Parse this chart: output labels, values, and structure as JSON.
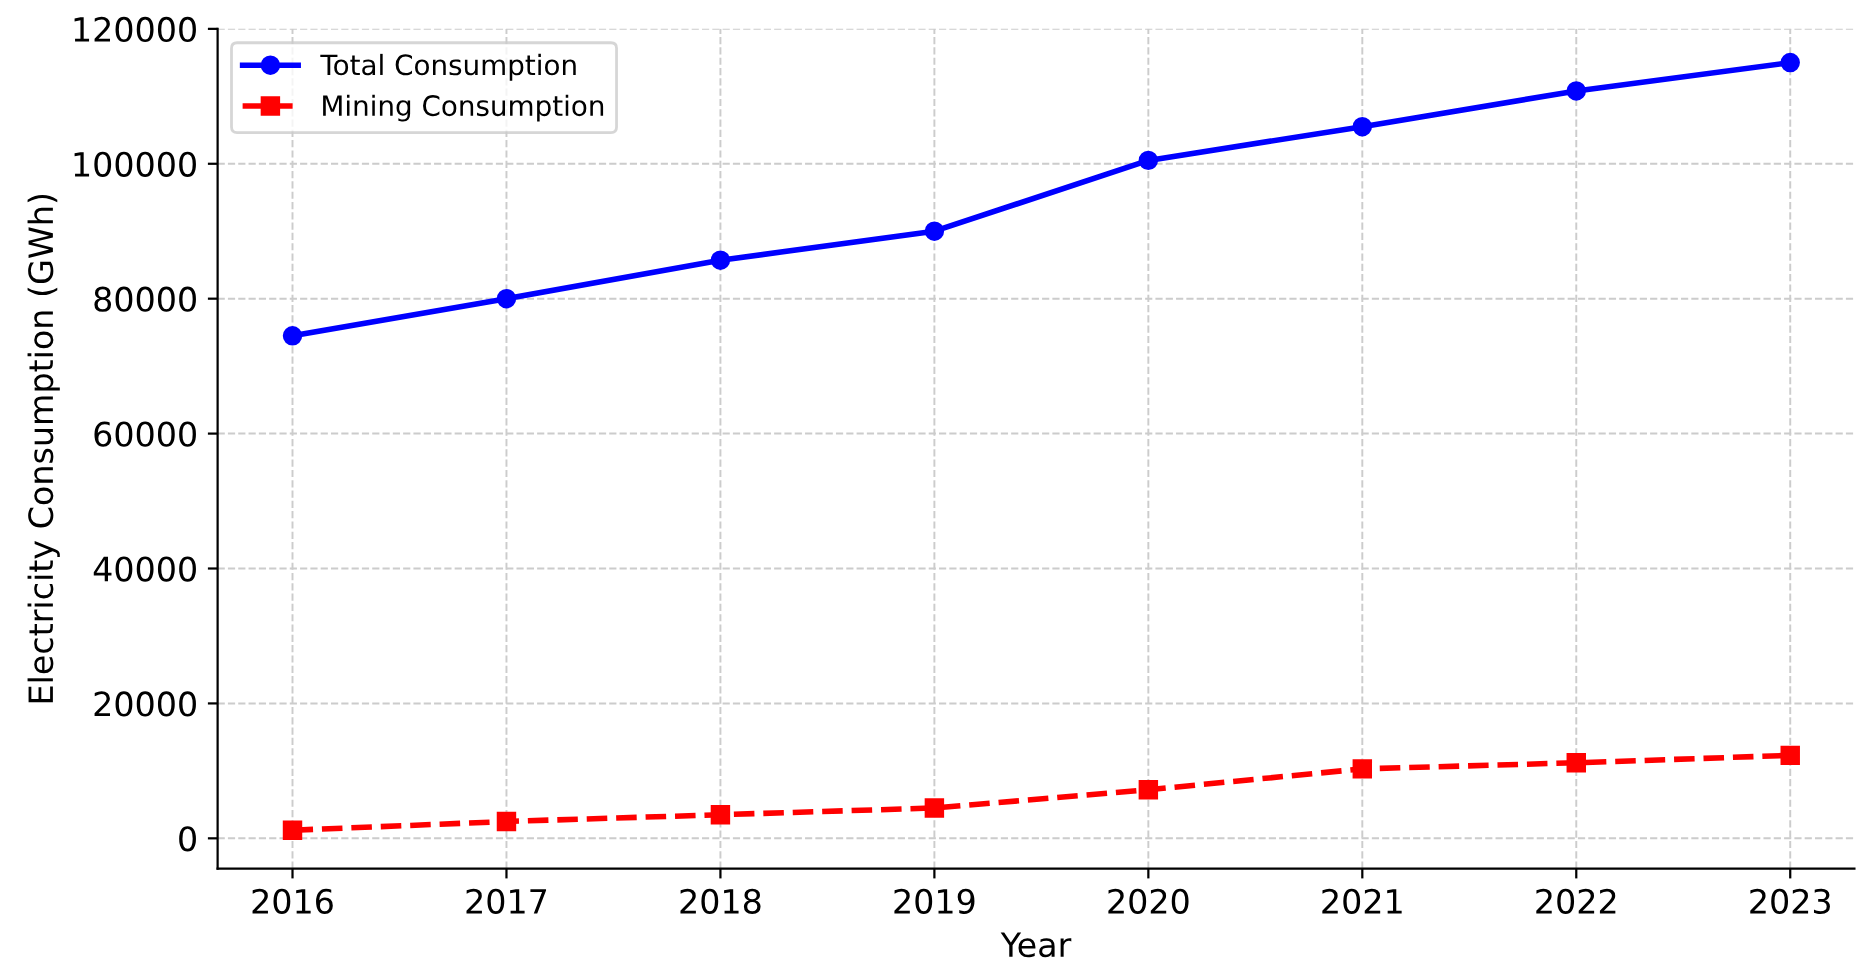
{
  "chart_data": {
    "type": "line",
    "xlabel": "Year",
    "ylabel": "Electricity Consumption (GWh)",
    "x": [
      2016,
      2017,
      2018,
      2019,
      2020,
      2021,
      2022,
      2023
    ],
    "series": [
      {
        "name": "Total Consumption",
        "color": "#0000ff",
        "marker": "circle",
        "line_style": "solid",
        "values": [
          74500,
          80000,
          85700,
          90000,
          100500,
          105500,
          110800,
          115000
        ]
      },
      {
        "name": "Mining Consumption",
        "color": "#ff0000",
        "marker": "square",
        "line_style": "dashed",
        "values": [
          1200,
          2500,
          3500,
          4500,
          7200,
          10300,
          11200,
          12300
        ]
      }
    ],
    "xlim": [
      2015.65,
      2023.3
    ],
    "xticks": [
      2016,
      2017,
      2018,
      2019,
      2020,
      2021,
      2022,
      2023
    ],
    "ylim": [
      -4500,
      120000
    ],
    "yticks": [
      0,
      20000,
      40000,
      60000,
      80000,
      100000,
      120000
    ],
    "grid": true,
    "legend": "top left"
  }
}
